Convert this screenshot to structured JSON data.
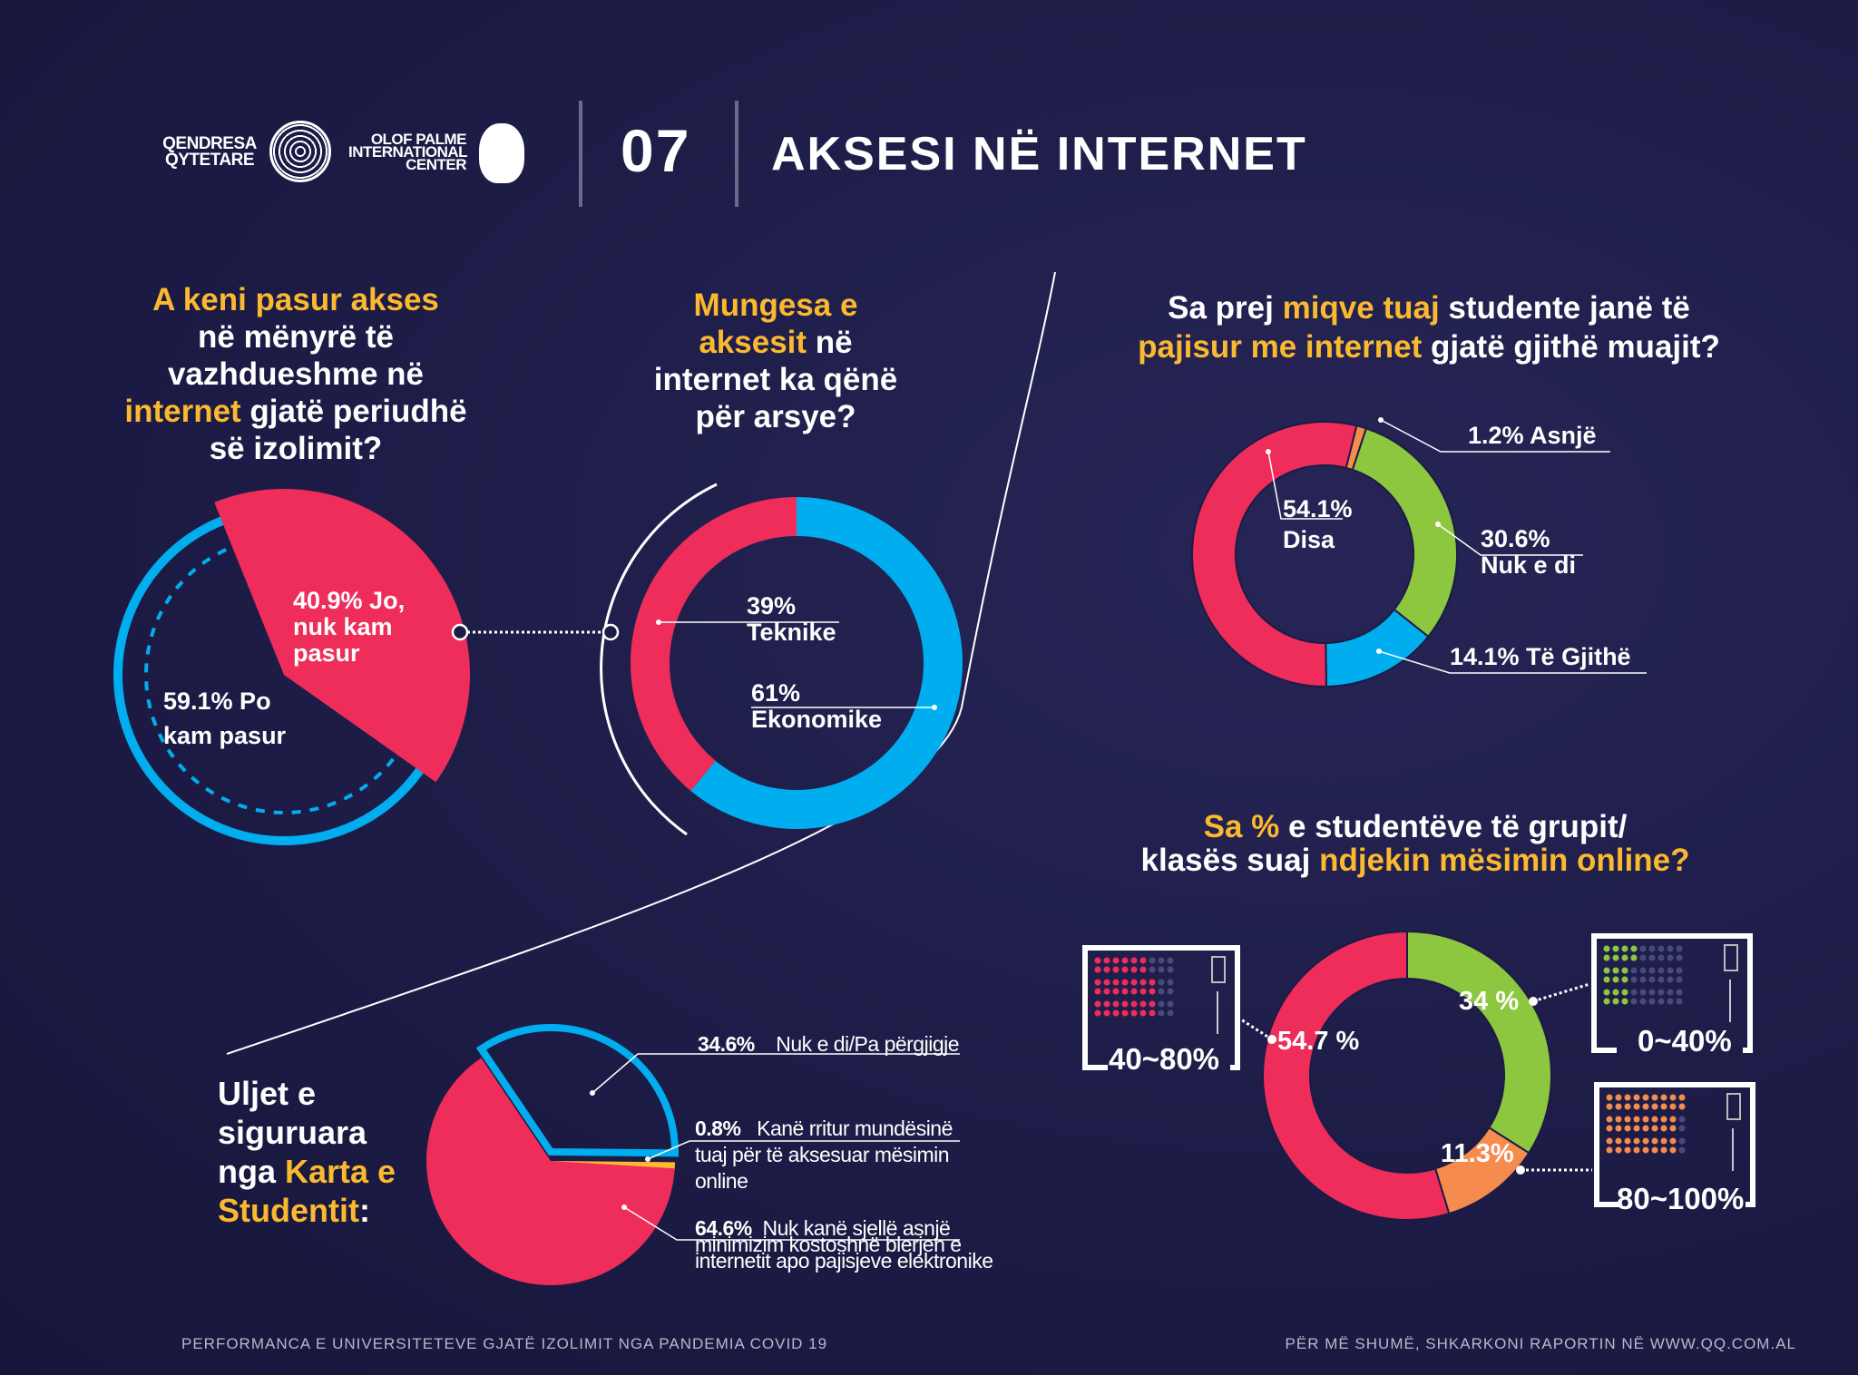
{
  "header": {
    "logo1": "QENDRESA QYTETARE",
    "logo2": "OLOF PALME INTERNATIONAL CENTER",
    "number": "07",
    "title": "AKSESI NË INTERNET"
  },
  "colors": {
    "red": "#ee2d5a",
    "blue": "#00aeef",
    "green": "#8dc63f",
    "orange": "#f58b4c",
    "yellow": "#fbb92f",
    "bg": "#1c1b45"
  },
  "chart_data": [
    {
      "type": "pie",
      "title": "A keni pasur akses në mënyrë të vazhdueshme në internet gjatë periudhë së izolimit?",
      "title_parts": [
        "A keni pasur akses",
        "në mënyrë të",
        "vazhdueshme në",
        "internet",
        " gjatë periudhë",
        "së izolimit?"
      ],
      "series": [
        {
          "name": "Jo, nuk kam pasur",
          "value": 40.9,
          "label": "40.9% Jo, nuk kam pasur",
          "color": "#ee2d5a"
        },
        {
          "name": "Po kam pasur",
          "value": 59.1,
          "label": "59.1% Po kam pasur",
          "color": "#00aeef"
        }
      ]
    },
    {
      "type": "pie",
      "title": "Mungesa e aksesit në internet ka qënë për arsye?",
      "title_parts": [
        "Mungesa e",
        "aksesit",
        " në",
        "internet ka qënë",
        "për arsye?"
      ],
      "series": [
        {
          "name": "Ekonomike",
          "value": 61,
          "pct": "61%",
          "color": "#00aeef"
        },
        {
          "name": "Teknike",
          "value": 39,
          "pct": "39%",
          "color": "#ee2d5a"
        }
      ]
    },
    {
      "type": "pie",
      "title": "Sa prej miqve tuaj studente janë të pajisur me internet gjatë gjithë muajit?",
      "title_parts": [
        "Sa prej ",
        "miqve tuaj",
        " studente janë të",
        "pajisur me internet",
        "  gjatë gjithë muajit?"
      ],
      "series": [
        {
          "name": "Asnjë",
          "value": 1.2,
          "label": "1.2% Asnjë",
          "color": "#f58b4c"
        },
        {
          "name": "Nuk e di",
          "value": 30.6,
          "pct": "30.6%",
          "color": "#8dc63f"
        },
        {
          "name": "Të Gjithë",
          "value": 14.1,
          "label": "14.1% Të Gjithë",
          "color": "#00aeef"
        },
        {
          "name": "Disa",
          "value": 54.1,
          "pct": "54.1%",
          "color": "#ee2d5a"
        }
      ]
    },
    {
      "type": "pie",
      "title": "Sa % e studentëve të grupit/klasës suaj ndjekin mësimin online?",
      "title_parts": [
        "Sa %",
        " e studentëve të grupit/",
        "klasës suaj ",
        "ndjekin mësimin online?"
      ],
      "series": [
        {
          "name": "0~40%",
          "value": 34,
          "label": "34 %",
          "color": "#8dc63f"
        },
        {
          "name": "80~100%",
          "value": 11.3,
          "label": "11.3%",
          "color": "#f58b4c"
        },
        {
          "name": "40~80%",
          "value": 54.7,
          "label": "54.7 %",
          "color": "#ee2d5a"
        }
      ]
    },
    {
      "type": "pie",
      "title": "Uljet e siguruara nga Karta e Studentit:",
      "title_parts": [
        "Uljet e",
        "siguruara",
        "nga ",
        "Karta e",
        "Studentit",
        ":"
      ],
      "series": [
        {
          "name": "Nuk e di/Pa përgjigje",
          "value": 34.6,
          "pct": "34.6%",
          "color": "#00aeef"
        },
        {
          "name": "Kanë rritur mundësinë tuaj për të aksesuar mësimin online",
          "value": 0.8,
          "pct": "0.8%",
          "text1": "Kanë rritur mundësinë",
          "text2": "tuaj për të aksesuar mësimin",
          "text3": "online",
          "color": "#fbb92f"
        },
        {
          "name": "Nuk kanë sjellë asnjë minimizim kostoshnë blerjen e internetit apo pajisjeve elektronike",
          "value": 64.6,
          "pct": "64.6%",
          "text1": "Nuk kanë sjellë asnjë",
          "text2": "minimizim kostoshnë blerjen e",
          "text3": "internetit apo pajisjeve elektronike",
          "color": "#ee2d5a"
        }
      ]
    }
  ],
  "footer": {
    "left": "PERFORMANCA E UNIVERSITETEVE GJATË IZOLIMIT NGA PANDEMIA COVID 19",
    "right": "PËR MË SHUMË, SHKARKONI RAPORTIN NË WWW.QQ.COM.AL"
  }
}
